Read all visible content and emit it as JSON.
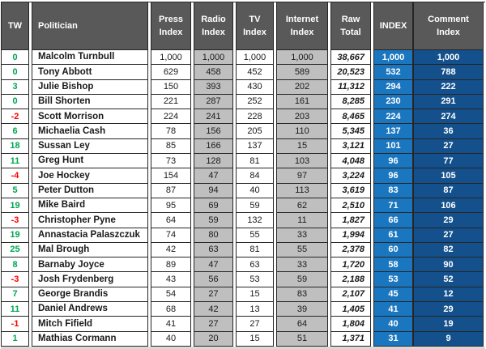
{
  "chart_data": {
    "type": "table",
    "columns": [
      {
        "id": "tw",
        "label": "TW"
      },
      {
        "id": "politician",
        "label": "Politician"
      },
      {
        "id": "press",
        "label": "Press\nIndex"
      },
      {
        "id": "radio",
        "label": "Radio\nIndex"
      },
      {
        "id": "tv",
        "label": "TV\nIndex"
      },
      {
        "id": "internet",
        "label": "Internet\nIndex"
      },
      {
        "id": "raw",
        "label": "Raw\nTotal"
      },
      {
        "id": "index",
        "label": "INDEX"
      },
      {
        "id": "comment",
        "label": "Comment\nIndex"
      }
    ],
    "rows": [
      {
        "tw": "0",
        "politician": "Malcolm Turnbull",
        "press": "1,000",
        "radio": "1,000",
        "tv": "1,000",
        "internet": "1,000",
        "raw": "38,667",
        "index": "1,000",
        "comment": "1,000"
      },
      {
        "tw": "0",
        "politician": "Tony Abbott",
        "press": "629",
        "radio": "458",
        "tv": "452",
        "internet": "589",
        "raw": "20,523",
        "index": "532",
        "comment": "788"
      },
      {
        "tw": "3",
        "politician": "Julie Bishop",
        "press": "150",
        "radio": "393",
        "tv": "430",
        "internet": "202",
        "raw": "11,312",
        "index": "294",
        "comment": "222"
      },
      {
        "tw": "0",
        "politician": "Bill Shorten",
        "press": "221",
        "radio": "287",
        "tv": "252",
        "internet": "161",
        "raw": "8,285",
        "index": "230",
        "comment": "291"
      },
      {
        "tw": "-2",
        "politician": "Scott Morrison",
        "press": "224",
        "radio": "241",
        "tv": "228",
        "internet": "203",
        "raw": "8,465",
        "index": "224",
        "comment": "274"
      },
      {
        "tw": "6",
        "politician": "Michaelia Cash",
        "press": "78",
        "radio": "156",
        "tv": "205",
        "internet": "110",
        "raw": "5,345",
        "index": "137",
        "comment": "36"
      },
      {
        "tw": "18",
        "politician": "Sussan Ley",
        "press": "85",
        "radio": "166",
        "tv": "137",
        "internet": "15",
        "raw": "3,121",
        "index": "101",
        "comment": "27"
      },
      {
        "tw": "11",
        "politician": "Greg Hunt",
        "press": "73",
        "radio": "128",
        "tv": "81",
        "internet": "103",
        "raw": "4,048",
        "index": "96",
        "comment": "77"
      },
      {
        "tw": "-4",
        "politician": "Joe Hockey",
        "press": "154",
        "radio": "47",
        "tv": "84",
        "internet": "97",
        "raw": "3,224",
        "index": "96",
        "comment": "105"
      },
      {
        "tw": "5",
        "politician": "Peter Dutton",
        "press": "87",
        "radio": "94",
        "tv": "40",
        "internet": "113",
        "raw": "3,619",
        "index": "83",
        "comment": "87"
      },
      {
        "tw": "19",
        "politician": "Mike Baird",
        "press": "95",
        "radio": "69",
        "tv": "59",
        "internet": "62",
        "raw": "2,510",
        "index": "71",
        "comment": "106"
      },
      {
        "tw": "-3",
        "politician": "Christopher Pyne",
        "press": "64",
        "radio": "59",
        "tv": "132",
        "internet": "11",
        "raw": "1,827",
        "index": "66",
        "comment": "29"
      },
      {
        "tw": "19",
        "politician": "Annastacia Palaszczuk",
        "press": "74",
        "radio": "80",
        "tv": "55",
        "internet": "33",
        "raw": "1,994",
        "index": "61",
        "comment": "27"
      },
      {
        "tw": "25",
        "politician": "Mal Brough",
        "press": "42",
        "radio": "63",
        "tv": "81",
        "internet": "55",
        "raw": "2,378",
        "index": "60",
        "comment": "82"
      },
      {
        "tw": "8",
        "politician": "Barnaby Joyce",
        "press": "89",
        "radio": "47",
        "tv": "63",
        "internet": "33",
        "raw": "1,720",
        "index": "58",
        "comment": "90"
      },
      {
        "tw": "-3",
        "politician": "Josh Frydenberg",
        "press": "43",
        "radio": "56",
        "tv": "53",
        "internet": "59",
        "raw": "2,188",
        "index": "53",
        "comment": "52"
      },
      {
        "tw": "7",
        "politician": "George Brandis",
        "press": "54",
        "radio": "27",
        "tv": "15",
        "internet": "83",
        "raw": "2,107",
        "index": "45",
        "comment": "12"
      },
      {
        "tw": "11",
        "politician": "Daniel Andrews",
        "press": "68",
        "radio": "42",
        "tv": "13",
        "internet": "39",
        "raw": "1,405",
        "index": "41",
        "comment": "29"
      },
      {
        "tw": "-1",
        "politician": "Mitch Fifield",
        "press": "41",
        "radio": "27",
        "tv": "27",
        "internet": "64",
        "raw": "1,804",
        "index": "40",
        "comment": "19"
      },
      {
        "tw": "1",
        "politician": "Mathias Cormann",
        "press": "40",
        "radio": "20",
        "tv": "15",
        "internet": "51",
        "raw": "1,371",
        "index": "31",
        "comment": "9"
      }
    ]
  },
  "colors": {
    "header_bg": "#595959",
    "gray_col": "#BFBFBF",
    "index_bg": "#1B76C0",
    "comment_bg": "#14508C",
    "positive": "#00A651",
    "negative": "#FF0000",
    "border": "#262626",
    "bottom_strip": "#D9D9D9"
  }
}
